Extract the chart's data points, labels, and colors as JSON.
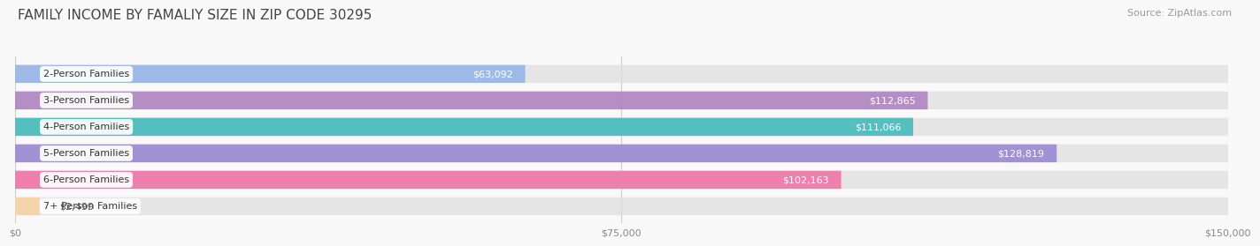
{
  "title": "FAMILY INCOME BY FAMALIY SIZE IN ZIP CODE 30295",
  "source": "Source: ZipAtlas.com",
  "categories": [
    "2-Person Families",
    "3-Person Families",
    "4-Person Families",
    "5-Person Families",
    "6-Person Families",
    "7+ Person Families"
  ],
  "values": [
    63092,
    112865,
    111066,
    128819,
    102163,
    2499
  ],
  "labels": [
    "$63,092",
    "$112,865",
    "$111,066",
    "$128,819",
    "$102,163",
    "$2,499"
  ],
  "bar_colors": [
    "#9ab8e8",
    "#b389c5",
    "#4dbdbe",
    "#9b8fd4",
    "#f07bab",
    "#f5d5a8"
  ],
  "xlim": [
    0,
    150000
  ],
  "xticks": [
    0,
    75000,
    150000
  ],
  "xticklabels": [
    "$0",
    "$75,000",
    "$150,000"
  ],
  "title_fontsize": 11,
  "source_fontsize": 8,
  "label_fontsize": 8,
  "category_fontsize": 8,
  "bar_height": 0.68,
  "background_color": "#f9f9f9"
}
